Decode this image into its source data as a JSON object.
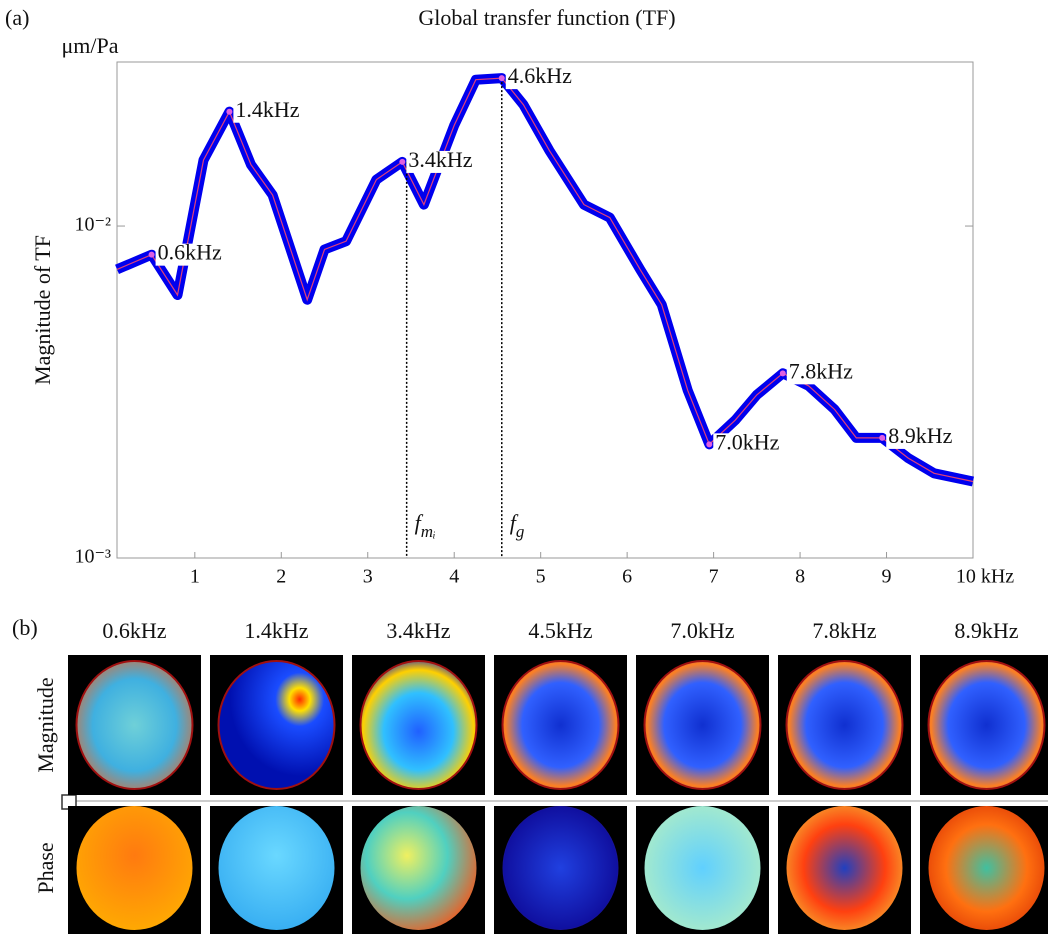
{
  "chart_data": {
    "type": "line",
    "panel_label": "(a)",
    "title": "Global transfer function (TF)",
    "y_unit": "μm/Pa",
    "y_label": "Magnitude of TF",
    "log_y": true,
    "xlim": [
      0.1,
      10
    ],
    "ylim": [
      0.001,
      0.0312
    ],
    "xticks": [
      1,
      2,
      3,
      4,
      5,
      6,
      7,
      8,
      9,
      {
        "value": 10,
        "label": "10 kHz"
      }
    ],
    "yticks": [
      {
        "value": 0.001,
        "label": "10⁻³"
      },
      {
        "value": 0.01,
        "label": "10⁻²"
      }
    ],
    "x": [
      0.1,
      0.5,
      0.8,
      1.1,
      1.4,
      1.65,
      1.9,
      2.3,
      2.5,
      2.75,
      3.1,
      3.4,
      3.65,
      4.0,
      4.25,
      4.55,
      4.8,
      5.1,
      5.5,
      5.8,
      6.15,
      6.4,
      6.7,
      6.95,
      7.25,
      7.5,
      7.8,
      8.1,
      8.4,
      8.65,
      8.95,
      9.25,
      9.55,
      10
    ],
    "series": [
      {
        "color": "#0000ee",
        "center_color": "#e0407a",
        "values": [
          0.0074,
          0.0082,
          0.0062,
          0.0158,
          0.0221,
          0.0153,
          0.0124,
          0.006,
          0.0085,
          0.009,
          0.0138,
          0.0156,
          0.0116,
          0.0201,
          0.0276,
          0.0279,
          0.0232,
          0.0169,
          0.0116,
          0.0106,
          0.0074,
          0.0058,
          0.0032,
          0.0022,
          0.0026,
          0.0031,
          0.0036,
          0.0033,
          0.0028,
          0.0023,
          0.0023,
          0.002,
          0.0018,
          0.0017
        ]
      }
    ],
    "annotations": [
      {
        "text": "0.6kHz",
        "x": 0.5
      },
      {
        "text": "1.4kHz",
        "x": 1.4
      },
      {
        "text": "3.4kHz",
        "x": 3.4
      },
      {
        "text": "4.6kHz",
        "x": 4.55
      },
      {
        "text": "7.0kHz",
        "x": 6.95
      },
      {
        "text": "7.8kHz",
        "x": 7.8
      },
      {
        "text": "8.9kHz",
        "x": 8.95
      }
    ],
    "markers": [
      {
        "x": 3.45,
        "label": "f",
        "subscript": "mᵢ"
      },
      {
        "x": 4.55,
        "label": "f",
        "subscript": "g"
      }
    ]
  },
  "panel_b": {
    "panel_label": "(b)",
    "columns": [
      "0.6kHz",
      "1.4kHz",
      "3.4kHz",
      "4.5kHz",
      "7.0kHz",
      "7.8kHz",
      "8.9kHz"
    ],
    "rows": [
      "Magnitude",
      "Phase"
    ]
  }
}
